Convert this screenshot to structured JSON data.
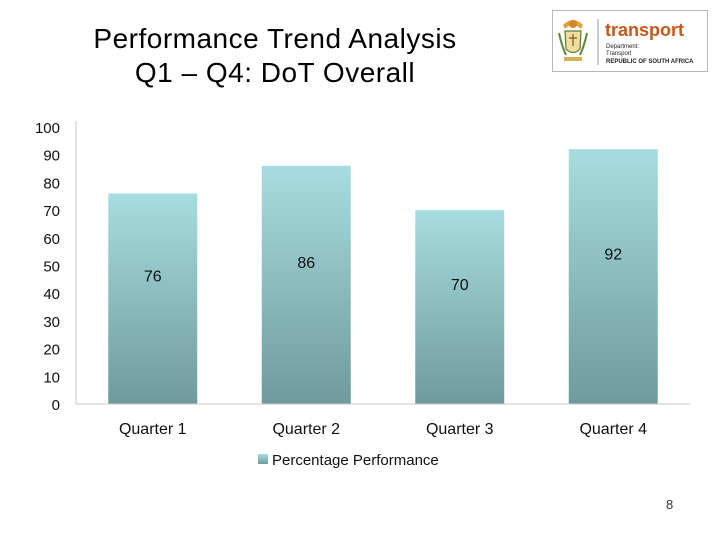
{
  "slide": {
    "title_line1": "Performance Trend Analysis",
    "title_line2": "Q1 – Q4: DoT Overall",
    "page_number": "8"
  },
  "logo": {
    "wordmark": "transport",
    "line1": "Department:",
    "line2": "Transport",
    "line3": "REPUBLIC OF SOUTH AFRICA",
    "icon": "coat-of-arms-icon",
    "accent_color": "#c8571b"
  },
  "chart_data": {
    "type": "bar",
    "categories": [
      "Quarter 1",
      "Quarter 2",
      "Quarter 3",
      "Quarter 4"
    ],
    "series": [
      {
        "name": "Percentage Performance",
        "values": [
          76,
          86,
          70,
          92
        ]
      }
    ],
    "yticks": [
      0,
      10,
      20,
      30,
      40,
      50,
      60,
      70,
      80,
      90,
      100
    ],
    "ylim": [
      0,
      100
    ],
    "legend": "bottom",
    "grid": false,
    "colors": {
      "bar_top": "#a7dde0",
      "bar_bottom": "#6f9a9d",
      "axis": "#c8c8c8"
    }
  }
}
